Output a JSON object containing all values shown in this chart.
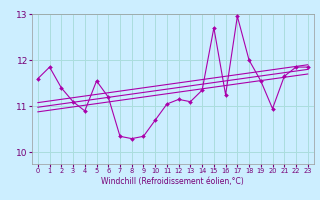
{
  "xlabel": "Windchill (Refroidissement éolien,°C)",
  "background_color": "#cceeff",
  "line_color": "#aa00aa",
  "grid_color": "#aadddd",
  "xlim": [
    -0.5,
    23.5
  ],
  "ylim": [
    9.75,
    13.0
  ],
  "yticks": [
    10,
    11,
    12,
    13
  ],
  "xticks": [
    0,
    1,
    2,
    3,
    4,
    5,
    6,
    7,
    8,
    9,
    10,
    11,
    12,
    13,
    14,
    15,
    16,
    17,
    18,
    19,
    20,
    21,
    22,
    23
  ],
  "data_x": [
    0,
    1,
    2,
    3,
    4,
    5,
    6,
    7,
    8,
    9,
    10,
    11,
    12,
    13,
    14,
    15,
    16,
    17,
    18,
    19,
    20,
    21,
    22,
    23
  ],
  "data_y": [
    11.6,
    11.85,
    11.4,
    11.1,
    10.9,
    11.55,
    11.2,
    10.35,
    10.3,
    10.35,
    10.7,
    11.05,
    11.15,
    11.1,
    11.35,
    12.7,
    11.25,
    12.95,
    12.0,
    11.55,
    10.95,
    11.65,
    11.85,
    11.85
  ],
  "trend1_x": [
    0,
    23
  ],
  "trend1_y": [
    10.88,
    11.7
  ],
  "trend2_x": [
    0,
    23
  ],
  "trend2_y": [
    10.98,
    11.8
  ],
  "trend3_x": [
    0,
    23
  ],
  "trend3_y": [
    11.08,
    11.9
  ],
  "xlabel_fontsize": 5.5,
  "ytick_fontsize": 6.5,
  "xtick_fontsize": 4.8
}
